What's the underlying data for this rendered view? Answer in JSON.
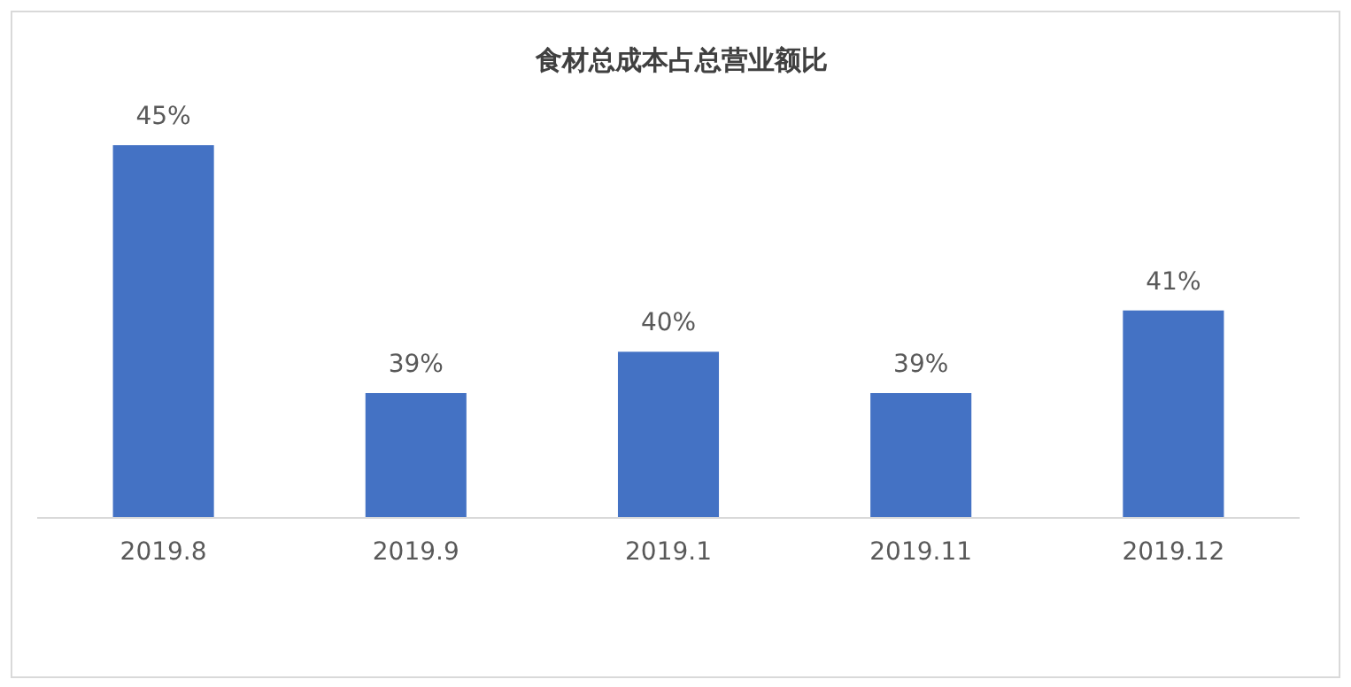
{
  "chart_data": {
    "type": "bar",
    "title": "食材总成本占总营业额比",
    "categories": [
      "2019.8",
      "2019.9",
      "2019.1",
      "2019.11",
      "2019.12"
    ],
    "values": [
      45,
      39,
      40,
      39,
      41
    ],
    "value_labels": [
      "45%",
      "39%",
      "40%",
      "39%",
      "41%"
    ],
    "color": "#4472c4",
    "ylim": [
      36,
      45
    ]
  }
}
